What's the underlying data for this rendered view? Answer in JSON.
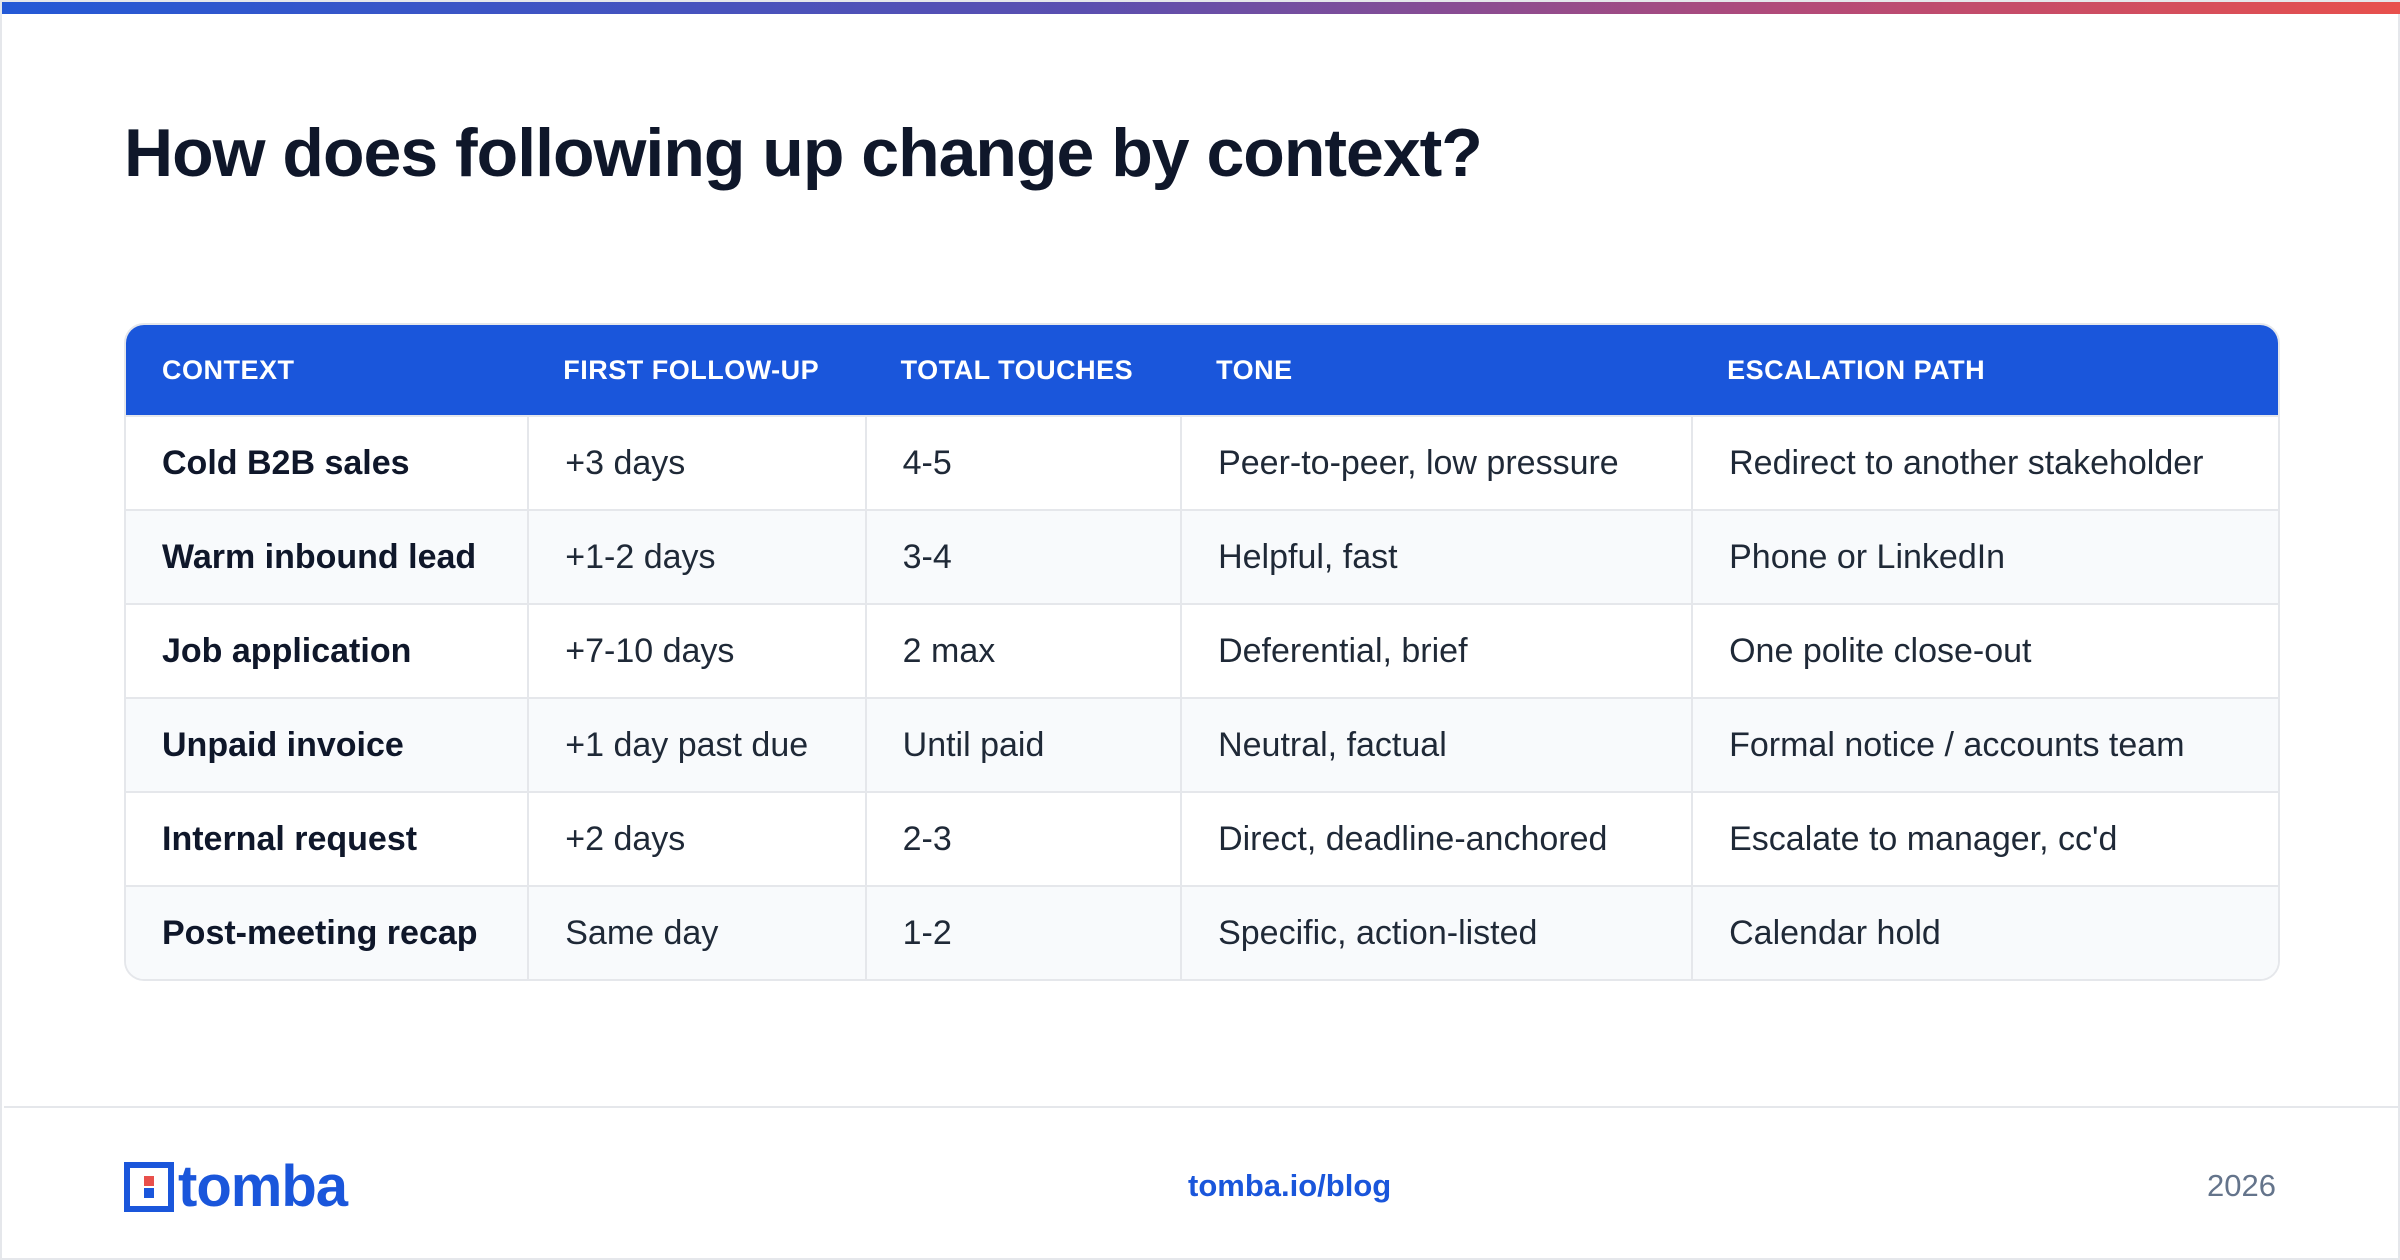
{
  "title": "How does following up change by context?",
  "table": {
    "headers": [
      "CONTEXT",
      "FIRST FOLLOW-UP",
      "TOTAL TOUCHES",
      "TONE",
      "ESCALATION PATH"
    ],
    "rows": [
      [
        "Cold B2B sales",
        "+3 days",
        "4-5",
        "Peer-to-peer, low pressure",
        "Redirect to another stakeholder"
      ],
      [
        "Warm inbound lead",
        "+1-2 days",
        "3-4",
        "Helpful, fast",
        "Phone or LinkedIn"
      ],
      [
        "Job application",
        "+7-10 days",
        "2 max",
        "Deferential, brief",
        "One polite close-out"
      ],
      [
        "Unpaid invoice",
        "+1 day past due",
        "Until paid",
        "Neutral, factual",
        "Formal notice / accounts team"
      ],
      [
        "Internal request",
        "+2 days",
        "2-3",
        "Direct, deadline-anchored",
        "Escalate to manager, cc'd"
      ],
      [
        "Post-meeting recap",
        "Same day",
        "1-2",
        "Specific, action-listed",
        "Calendar hold"
      ]
    ]
  },
  "footer": {
    "logo_text": "tomba",
    "link": "tomba.io/blog",
    "year": "2026"
  },
  "colors": {
    "accent": "#1a56db",
    "heading": "#0f172a",
    "muted": "#64748b",
    "alt_row": "#f8fafc"
  }
}
